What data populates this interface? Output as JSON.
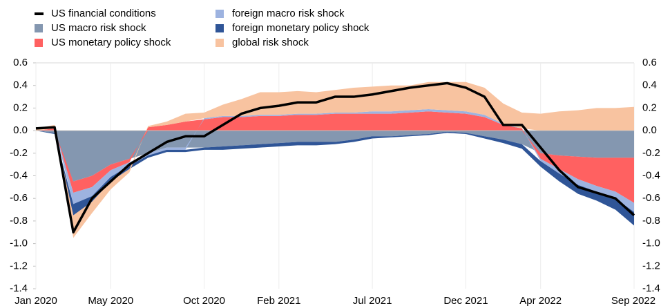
{
  "chart_data": {
    "type": "area",
    "x": [
      "2020-01",
      "2020-02",
      "2020-03",
      "2020-04",
      "2020-05",
      "2020-06",
      "2020-07",
      "2020-08",
      "2020-09",
      "2020-10",
      "2020-11",
      "2020-12",
      "2021-01",
      "2021-02",
      "2021-03",
      "2021-04",
      "2021-05",
      "2021-06",
      "2021-07",
      "2021-08",
      "2021-09",
      "2021-10",
      "2021-11",
      "2021-12",
      "2022-01",
      "2022-02",
      "2022-03",
      "2022-04",
      "2022-05",
      "2022-06",
      "2022-07",
      "2022-08",
      "2022-09"
    ],
    "xticks": [
      {
        "value": "2020-01",
        "label": "Jan 2020"
      },
      {
        "value": "2020-05",
        "label": "May 2020"
      },
      {
        "value": "2020-10",
        "label": "Oct 2020"
      },
      {
        "value": "2021-02",
        "label": "Feb 2021"
      },
      {
        "value": "2021-07",
        "label": "Jul 2021"
      },
      {
        "value": "2021-12",
        "label": "Dec 2021"
      },
      {
        "value": "2022-04",
        "label": "Apr 2022"
      },
      {
        "value": "2022-09",
        "label": "Sep 2022"
      }
    ],
    "ylim": [
      -1.4,
      0.6
    ],
    "yticks": [
      -1.4,
      -1.2,
      {
        "value": -1,
        "label": "-1.0"
      },
      -0.8,
      -0.6,
      -0.4,
      -0.2,
      {
        "value": 0,
        "label": "0.0"
      },
      0.2,
      0.4,
      0.6
    ],
    "series": [
      {
        "name": "US macro risk shock",
        "type": "area",
        "color": "#8497b0",
        "values": [
          0,
          -0.02,
          -0.45,
          -0.4,
          -0.3,
          -0.25,
          -0.2,
          -0.15,
          -0.15,
          -0.15,
          -0.14,
          -0.13,
          -0.12,
          -0.11,
          -0.1,
          -0.1,
          -0.1,
          -0.08,
          -0.05,
          -0.05,
          -0.04,
          -0.03,
          -0.01,
          -0.02,
          -0.05,
          -0.08,
          -0.12,
          -0.2,
          -0.22,
          -0.23,
          -0.24,
          -0.24,
          -0.24
        ]
      },
      {
        "name": "US monetary policy shock",
        "type": "area",
        "color": "#ff6161",
        "values": [
          0,
          0.02,
          -0.1,
          -0.1,
          -0.05,
          -0.03,
          0.03,
          0.05,
          0.08,
          0.1,
          0.12,
          0.12,
          0.13,
          0.13,
          0.14,
          0.14,
          0.15,
          0.15,
          0.15,
          0.15,
          0.16,
          0.17,
          0.16,
          0.15,
          0.12,
          0.05,
          0.02,
          -0.05,
          -0.12,
          -0.2,
          -0.25,
          -0.3,
          -0.4
        ]
      },
      {
        "name": "foreign macro risk shock",
        "type": "area",
        "color": "#9db3e0",
        "values": [
          0,
          0,
          -0.1,
          -0.08,
          -0.06,
          -0.03,
          -0.02,
          -0.02,
          -0.02,
          0.01,
          0.01,
          0.01,
          0.01,
          0.01,
          0.01,
          0.01,
          0.01,
          0.01,
          0.02,
          0.02,
          0.02,
          0.02,
          0.02,
          0.02,
          0.02,
          0.01,
          0,
          -0.02,
          -0.04,
          -0.05,
          -0.05,
          -0.06,
          -0.08
        ]
      },
      {
        "name": "foreign monetary policy shock",
        "type": "area",
        "color": "#2f5597",
        "values": [
          0,
          -0.01,
          -0.1,
          -0.05,
          -0.04,
          -0.03,
          -0.02,
          -0.02,
          -0.02,
          -0.02,
          -0.03,
          -0.03,
          -0.03,
          -0.03,
          -0.03,
          -0.03,
          -0.02,
          -0.02,
          -0.02,
          -0.01,
          -0.01,
          -0.01,
          -0.01,
          -0.01,
          -0.02,
          -0.03,
          -0.04,
          -0.05,
          -0.07,
          -0.08,
          -0.08,
          -0.1,
          -0.12
        ]
      },
      {
        "name": "global risk shock",
        "type": "area",
        "color": "#f8c3a0",
        "values": [
          0.02,
          0.03,
          -0.2,
          -0.1,
          -0.07,
          -0.03,
          0.01,
          0.03,
          0.07,
          0.05,
          0.1,
          0.15,
          0.2,
          0.2,
          0.2,
          0.19,
          0.2,
          0.22,
          0.22,
          0.23,
          0.22,
          0.24,
          0.25,
          0.26,
          0.24,
          0.18,
          0.14,
          0.15,
          0.17,
          0.18,
          0.2,
          0.2,
          0.21
        ]
      },
      {
        "name": "US financial conditions",
        "type": "line",
        "color": "#000000",
        "values": [
          0.02,
          0.03,
          -0.9,
          -0.6,
          -0.45,
          -0.3,
          -0.2,
          -0.1,
          -0.05,
          -0.05,
          0.05,
          0.15,
          0.2,
          0.22,
          0.25,
          0.25,
          0.3,
          0.3,
          0.32,
          0.35,
          0.38,
          0.4,
          0.42,
          0.38,
          0.3,
          0.05,
          0.05,
          -0.15,
          -0.35,
          -0.5,
          -0.55,
          -0.6,
          -0.75
        ]
      }
    ],
    "legend_order": [
      5,
      2,
      0,
      3,
      1,
      4
    ]
  }
}
